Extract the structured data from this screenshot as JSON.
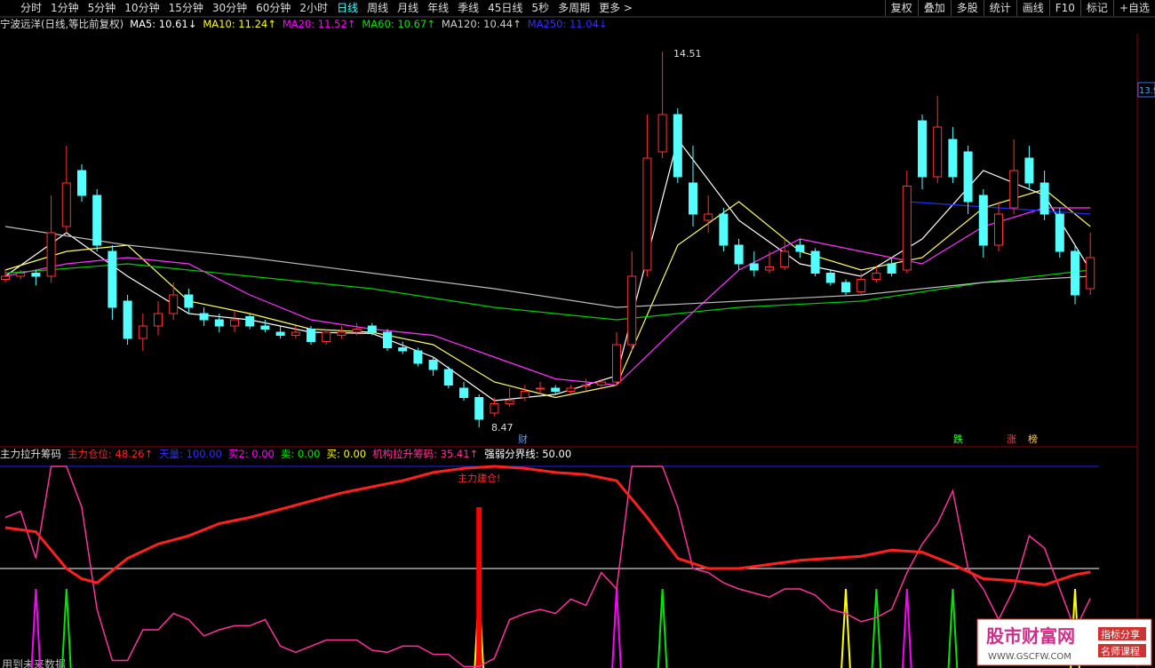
{
  "toolbar": {
    "left": [
      "分时",
      "1分钟",
      "5分钟",
      "10分钟",
      "15分钟",
      "30分钟",
      "60分钟",
      "2小时",
      "日线",
      "周线",
      "月线",
      "年线",
      "季线",
      "45日线",
      "5秒",
      "多周期",
      "更多 >"
    ],
    "active": 8,
    "right": [
      "复权",
      "叠加",
      "多股",
      "统计",
      "画线",
      "F10",
      "标记",
      "+自选"
    ]
  },
  "chart_data": {
    "type": "candlestick",
    "title": "宁波远洋(日线,等比前复权)",
    "legend": [
      {
        "text": "MA5: 10.61↓",
        "color": "#ffffff"
      },
      {
        "text": "MA10: 11.24↑",
        "color": "#ffff00"
      },
      {
        "text": "MA20: 11.52↑",
        "color": "#ff00ff"
      },
      {
        "text": "MA60: 10.67↑",
        "color": "#00e600"
      },
      {
        "text": "MA120: 10.44↑",
        "color": "#cccccc"
      },
      {
        "text": "MA250: 11.04↓",
        "color": "#3030ff"
      }
    ],
    "ylim": [
      8.2,
      14.8
    ],
    "price_label": 13.9,
    "annotations": [
      "14.51",
      "8.47"
    ],
    "events": [
      "财",
      "跌",
      "涨",
      "榜"
    ],
    "up_color": "#ff3232",
    "down_color": "#54ffff",
    "candles": [
      [
        10.85,
        11.0,
        10.8,
        10.9
      ],
      [
        10.9,
        11.0,
        10.85,
        10.95
      ],
      [
        10.95,
        11.0,
        10.75,
        10.9
      ],
      [
        10.9,
        12.2,
        10.8,
        11.6
      ],
      [
        11.7,
        13.0,
        11.6,
        12.4
      ],
      [
        12.6,
        12.7,
        12.1,
        12.2
      ],
      [
        12.2,
        12.3,
        11.3,
        11.4
      ],
      [
        11.3,
        11.4,
        10.2,
        10.4
      ],
      [
        10.5,
        10.6,
        9.8,
        9.9
      ],
      [
        9.9,
        10.3,
        9.7,
        10.1
      ],
      [
        10.1,
        10.5,
        9.95,
        10.3
      ],
      [
        10.3,
        10.8,
        10.2,
        10.6
      ],
      [
        10.6,
        10.7,
        10.3,
        10.4
      ],
      [
        10.3,
        10.4,
        10.1,
        10.2
      ],
      [
        10.2,
        10.3,
        10.0,
        10.1
      ],
      [
        10.1,
        10.35,
        10.0,
        10.2
      ],
      [
        10.25,
        10.3,
        10.05,
        10.1
      ],
      [
        10.1,
        10.2,
        10.0,
        10.05
      ],
      [
        10.0,
        10.1,
        9.9,
        9.95
      ],
      [
        9.95,
        10.1,
        9.9,
        10.0
      ],
      [
        10.05,
        10.1,
        9.8,
        9.85
      ],
      [
        9.85,
        10.05,
        9.8,
        10.0
      ],
      [
        9.95,
        10.1,
        9.9,
        10.0
      ],
      [
        10.0,
        10.15,
        9.95,
        10.05
      ],
      [
        10.1,
        10.15,
        9.95,
        10.0
      ],
      [
        10.0,
        10.05,
        9.7,
        9.75
      ],
      [
        9.75,
        9.85,
        9.65,
        9.7
      ],
      [
        9.7,
        9.75,
        9.45,
        9.5
      ],
      [
        9.55,
        9.6,
        9.3,
        9.4
      ],
      [
        9.4,
        9.45,
        9.1,
        9.15
      ],
      [
        9.1,
        9.2,
        8.9,
        8.95
      ],
      [
        8.95,
        9.0,
        8.47,
        8.6
      ],
      [
        8.7,
        8.95,
        8.65,
        8.85
      ],
      [
        8.85,
        9.1,
        8.8,
        8.9
      ],
      [
        8.95,
        9.15,
        8.9,
        9.05
      ],
      [
        9.1,
        9.2,
        9.0,
        9.1
      ],
      [
        9.1,
        9.15,
        9.0,
        9.05
      ],
      [
        9.05,
        9.15,
        9.0,
        9.1
      ],
      [
        9.15,
        9.25,
        9.05,
        9.15
      ],
      [
        9.15,
        9.25,
        9.1,
        9.2
      ],
      [
        9.2,
        10.0,
        9.15,
        9.8
      ],
      [
        9.8,
        11.3,
        9.7,
        10.9
      ],
      [
        11.0,
        13.5,
        10.9,
        12.8
      ],
      [
        12.9,
        14.51,
        12.8,
        13.5
      ],
      [
        13.5,
        13.6,
        12.4,
        12.5
      ],
      [
        12.4,
        13.0,
        11.7,
        11.9
      ],
      [
        11.8,
        12.2,
        11.6,
        11.9
      ],
      [
        11.9,
        12.0,
        11.3,
        11.4
      ],
      [
        11.4,
        11.5,
        11.0,
        11.1
      ],
      [
        11.1,
        11.3,
        10.9,
        11.0
      ],
      [
        11.0,
        11.3,
        10.95,
        11.05
      ],
      [
        11.05,
        11.5,
        11.0,
        11.3
      ],
      [
        11.4,
        11.5,
        11.2,
        11.3
      ],
      [
        11.3,
        11.35,
        10.9,
        10.95
      ],
      [
        10.95,
        11.0,
        10.75,
        10.8
      ],
      [
        10.8,
        10.85,
        10.6,
        10.65
      ],
      [
        10.65,
        10.95,
        10.6,
        10.85
      ],
      [
        10.85,
        11.05,
        10.8,
        10.95
      ],
      [
        11.1,
        11.2,
        10.9,
        10.95
      ],
      [
        11.0,
        12.6,
        10.95,
        12.35
      ],
      [
        13.4,
        13.5,
        12.3,
        12.5
      ],
      [
        12.5,
        13.8,
        12.4,
        13.3
      ],
      [
        13.1,
        13.3,
        12.4,
        12.5
      ],
      [
        12.9,
        13.0,
        11.9,
        12.1
      ],
      [
        12.2,
        12.3,
        11.2,
        11.4
      ],
      [
        11.4,
        12.1,
        11.3,
        11.9
      ],
      [
        12.0,
        13.1,
        11.9,
        12.6
      ],
      [
        12.8,
        13.0,
        12.3,
        12.4
      ],
      [
        12.4,
        12.6,
        11.8,
        11.9
      ],
      [
        11.9,
        12.0,
        11.2,
        11.3
      ],
      [
        11.3,
        11.4,
        10.45,
        10.6
      ],
      [
        10.7,
        11.6,
        10.6,
        11.2
      ]
    ],
    "lines": [
      {
        "x": [
          0,
          4,
          8,
          12,
          16,
          20,
          24,
          28,
          32,
          36,
          40,
          44,
          48,
          52,
          56,
          60,
          64,
          68,
          71
        ],
        "values": [
          10.9,
          11.6,
          10.9,
          10.3,
          10.2,
          10.0,
          9.98,
          9.6,
          8.9,
          9.0,
          9.3,
          13.1,
          11.8,
          11.1,
          10.9,
          11.5,
          12.6,
          12.2,
          11.0
        ]
      },
      {
        "x": [
          0,
          4,
          8,
          12,
          16,
          20,
          24,
          28,
          32,
          36,
          40,
          44,
          48,
          52,
          56,
          60,
          64,
          68,
          71
        ],
        "values": [
          11.0,
          11.3,
          11.4,
          10.5,
          10.3,
          10.05,
          10.0,
          9.8,
          9.2,
          8.95,
          9.15,
          11.4,
          12.1,
          11.3,
          11.0,
          11.2,
          12.0,
          12.3,
          11.7
        ]
      },
      {
        "x": [
          0,
          4,
          8,
          12,
          16,
          20,
          24,
          28,
          32,
          36,
          40,
          44,
          48,
          52,
          56,
          60,
          64,
          68,
          71
        ],
        "values": [
          10.9,
          11.1,
          11.2,
          11.1,
          10.6,
          10.2,
          10.05,
          9.95,
          9.6,
          9.25,
          9.15,
          10.1,
          11.0,
          11.5,
          11.3,
          11.1,
          11.7,
          12.0,
          12.0
        ]
      },
      {
        "x": [
          0,
          8,
          16,
          24,
          32,
          40,
          48,
          56,
          64,
          71
        ],
        "values": [
          10.95,
          11.1,
          10.9,
          10.7,
          10.4,
          10.2,
          10.4,
          10.5,
          10.8,
          11.0
        ]
      },
      {
        "x": [
          0,
          8,
          16,
          24,
          32,
          40,
          48,
          56,
          64,
          71
        ],
        "values": [
          11.7,
          11.4,
          11.2,
          10.95,
          10.7,
          10.4,
          10.5,
          10.6,
          10.8,
          10.9
        ]
      },
      {
        "x": [
          59,
          65,
          71
        ],
        "values": [
          12.1,
          12.0,
          11.9
        ]
      }
    ]
  },
  "indicator": {
    "title": "主力拉升筹码",
    "legend": [
      {
        "text": "主力仓位: 48.26↑",
        "color": "#ff2020"
      },
      {
        "text": "天量: 100.00",
        "color": "#3030ff"
      },
      {
        "text": "买2: 0.00",
        "color": "#ff00ff"
      },
      {
        "text": "卖: 0.00",
        "color": "#00e600"
      },
      {
        "text": "买: 0.00",
        "color": "#ffff00"
      },
      {
        "text": "机构拉升筹码: 35.41↑",
        "color": "#ff3399"
      },
      {
        "text": "强弱分界线: 50.00",
        "color": "#ffffff"
      }
    ],
    "ylim": [
      0,
      100
    ],
    "levels": [
      100,
      50
    ],
    "main": {
      "x": [
        0,
        2,
        4,
        5,
        6,
        8,
        10,
        12,
        14,
        16,
        18,
        20,
        22,
        24,
        26,
        28,
        30,
        32,
        34,
        36,
        38,
        40,
        42,
        44,
        46,
        48,
        50,
        52,
        54,
        56,
        58,
        60,
        62,
        64,
        66,
        68,
        70,
        71
      ],
      "values": [
        70,
        68,
        50,
        45,
        43,
        55,
        62,
        66,
        72,
        75,
        79,
        83,
        87,
        90,
        93,
        97,
        99,
        100,
        99,
        97,
        96,
        93,
        75,
        55,
        50,
        50,
        52,
        54,
        55,
        56,
        59,
        58,
        52,
        45,
        44,
        42,
        47,
        48.26
      ]
    },
    "inst": [
      75,
      78,
      55,
      100,
      100,
      80,
      30,
      5,
      5,
      20,
      20,
      28,
      25,
      17,
      20,
      22,
      22,
      25,
      12,
      9,
      12,
      15,
      15,
      15,
      10,
      9,
      12,
      12,
      8,
      8,
      2,
      2,
      6,
      25,
      28,
      30,
      28,
      35,
      32,
      48,
      40,
      100,
      100,
      100,
      80,
      50,
      48,
      43,
      40,
      38,
      36,
      40,
      40,
      37,
      30,
      28,
      24,
      26,
      30,
      48,
      62,
      72,
      88,
      50,
      40,
      25,
      40,
      66,
      60,
      40,
      20,
      35.41
    ],
    "spike_value": 40,
    "spikes": {
      "2": [
        2,
        40,
        59
      ],
      "3": [
        4,
        43,
        57,
        62
      ],
      "4": [
        31,
        55,
        70
      ]
    },
    "bar": {
      "at": 31,
      "value": 80,
      "label": "主力建仓!"
    }
  },
  "footer": "用到未来数据",
  "watermark": {
    "name": "股市财富网",
    "url": "WWW.GSCFW.COM",
    "tags": [
      "指标分享",
      "名师课程"
    ]
  }
}
